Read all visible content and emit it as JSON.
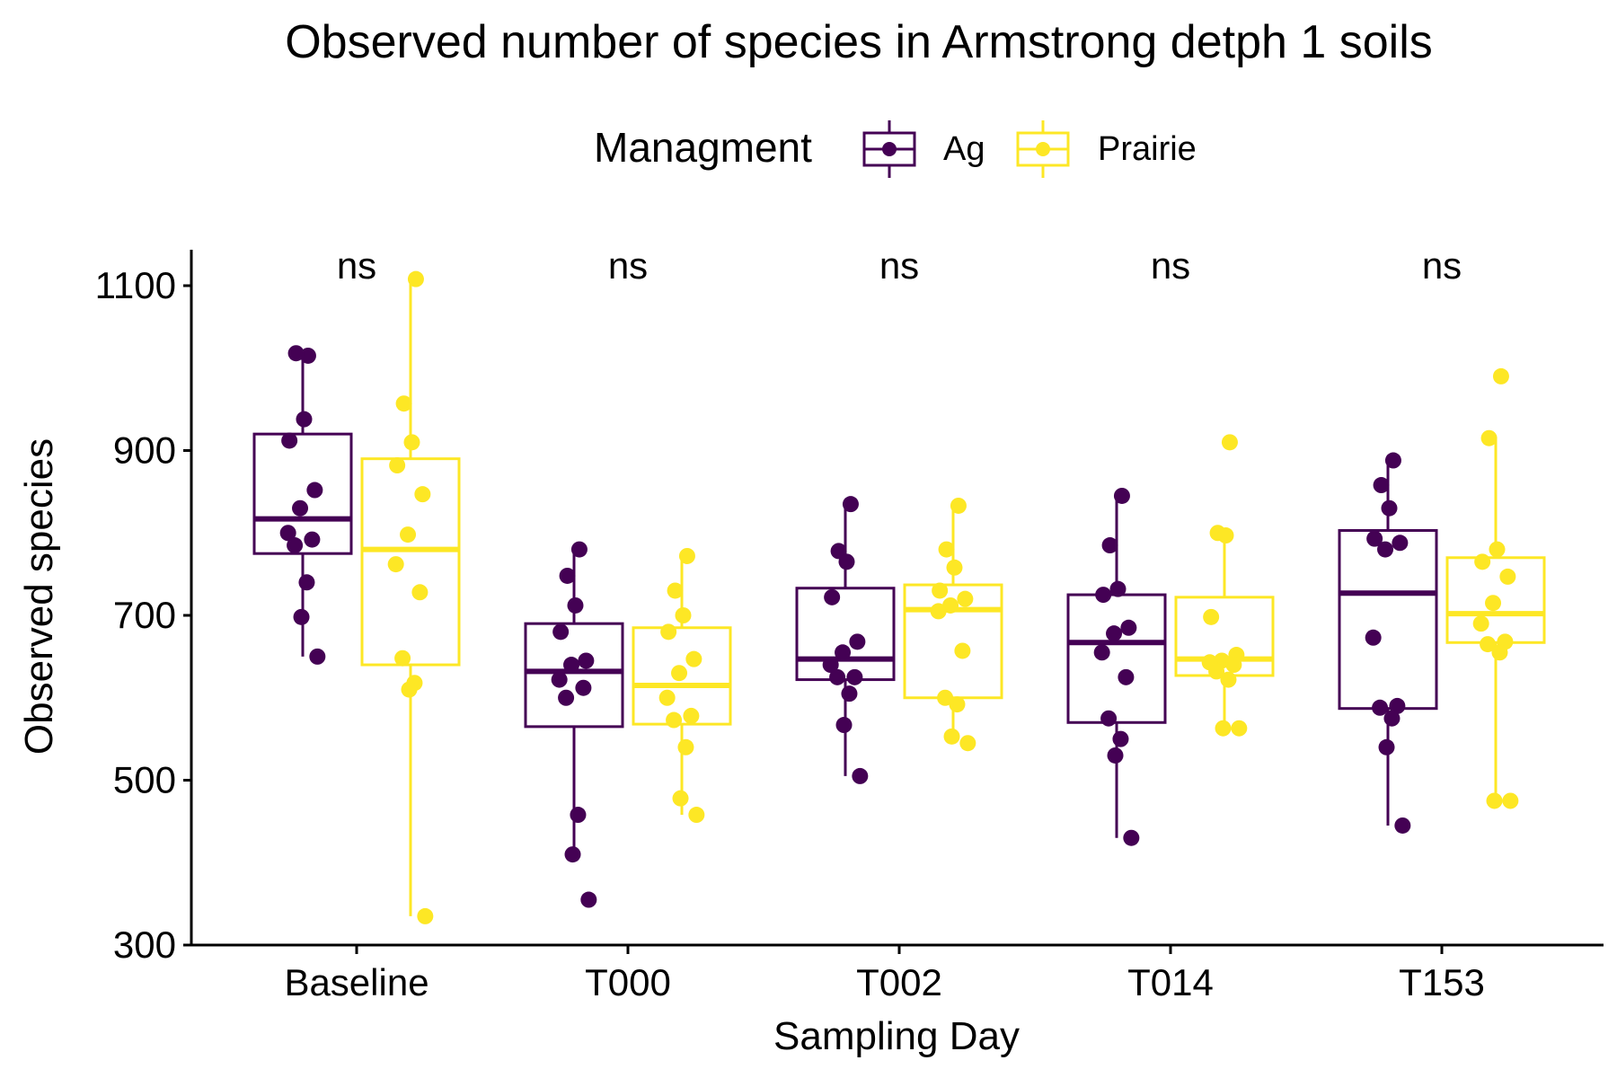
{
  "chart_data": {
    "type": "boxplot",
    "title": "Observed number of species in Armstrong detph 1 soils",
    "xlabel": "Sampling Day",
    "ylabel": "Observed species",
    "ylim": [
      290,
      1150
    ],
    "yticks": [
      300,
      500,
      700,
      900,
      1100
    ],
    "categories": [
      "Baseline",
      "T000",
      "T002",
      "T014",
      "T153"
    ],
    "legend": {
      "title": "Managment",
      "position": "top",
      "entries": [
        "Ag",
        "Prairie"
      ]
    },
    "grid": false,
    "significance": [
      "ns",
      "ns",
      "ns",
      "ns",
      "ns"
    ],
    "colors": {
      "Ag": "#440154",
      "Prairie": "#fde725",
      "axis": "#000000"
    },
    "series": [
      {
        "name": "Ag",
        "boxes": [
          {
            "whisker_low": 650,
            "q1": 775,
            "median": 817,
            "q3": 920,
            "whisker_high": 1015
          },
          {
            "whisker_low": 410,
            "q1": 565,
            "median": 632,
            "q3": 690,
            "whisker_high": 780
          },
          {
            "whisker_low": 505,
            "q1": 622,
            "median": 647,
            "q3": 733,
            "whisker_high": 835
          },
          {
            "whisker_low": 430,
            "q1": 570,
            "median": 667,
            "q3": 725,
            "whisker_high": 845
          },
          {
            "whisker_low": 445,
            "q1": 587,
            "median": 727,
            "q3": 803,
            "whisker_high": 888
          }
        ],
        "points": [
          [
            1015,
            1018,
            938,
            912,
            852,
            830,
            800,
            792,
            785,
            740,
            698,
            650
          ],
          [
            780,
            748,
            712,
            680,
            645,
            640,
            622,
            612,
            600,
            458,
            410,
            355
          ],
          [
            835,
            778,
            765,
            722,
            668,
            655,
            640,
            625,
            625,
            605,
            567,
            505
          ],
          [
            845,
            785,
            732,
            725,
            685,
            678,
            655,
            625,
            575,
            550,
            530,
            430
          ],
          [
            888,
            858,
            830,
            793,
            788,
            780,
            673,
            590,
            588,
            575,
            540,
            445
          ]
        ]
      },
      {
        "name": "Prairie",
        "boxes": [
          {
            "whisker_low": 335,
            "q1": 640,
            "median": 780,
            "q3": 890,
            "whisker_high": 1108
          },
          {
            "whisker_low": 458,
            "q1": 568,
            "median": 615,
            "q3": 685,
            "whisker_high": 772
          },
          {
            "whisker_low": 545,
            "q1": 600,
            "median": 707,
            "q3": 737,
            "whisker_high": 833
          },
          {
            "whisker_low": 563,
            "q1": 627,
            "median": 647,
            "q3": 722,
            "whisker_high": 798
          },
          {
            "whisker_low": 475,
            "q1": 667,
            "median": 702,
            "q3": 770,
            "whisker_high": 915
          }
        ],
        "points": [
          [
            1108,
            957,
            910,
            882,
            847,
            798,
            762,
            728,
            648,
            618,
            610,
            335
          ],
          [
            772,
            730,
            700,
            680,
            647,
            630,
            600,
            578,
            573,
            540,
            478,
            458
          ],
          [
            833,
            780,
            758,
            730,
            720,
            712,
            705,
            657,
            600,
            592,
            553,
            545
          ],
          [
            910,
            800,
            797,
            698,
            652,
            645,
            643,
            640,
            632,
            622,
            563,
            563
          ],
          [
            990,
            915,
            780,
            765,
            747,
            715,
            690,
            668,
            665,
            655,
            475,
            475
          ]
        ]
      }
    ]
  }
}
